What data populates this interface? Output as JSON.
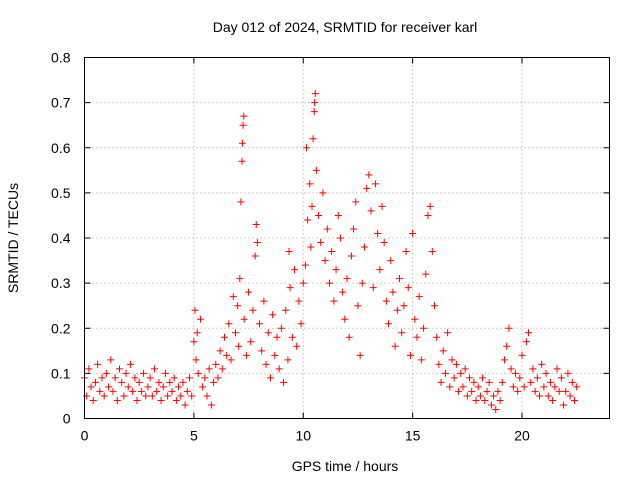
{
  "colors": {
    "series": "#ff0000",
    "axis": "#000000",
    "grid": "#a0a0a0",
    "background": "#ffffff"
  },
  "chart_data": {
    "type": "scatter",
    "title": "Day 012 of 2024, SRMTID for receiver karl",
    "xlabel": "GPS time / hours",
    "ylabel": "SRMTID / TECUs",
    "xlim": [
      0,
      24
    ],
    "ylim": [
      0,
      0.8
    ],
    "xticks": [
      0,
      5,
      10,
      15,
      20
    ],
    "xtick_labels": [
      "0",
      "5",
      "10",
      "15",
      "20"
    ],
    "yticks": [
      0,
      0.1,
      0.2,
      0.3,
      0.4,
      0.5,
      0.6,
      0.7,
      0.8
    ],
    "ytick_labels": [
      "0",
      "0.1",
      "0.2",
      "0.3",
      "0.4",
      "0.5",
      "0.6",
      "0.7",
      "0.8"
    ],
    "grid": true,
    "marker": "+",
    "series": [
      {
        "name": "SRMTID",
        "points": [
          [
            0.0,
            0.09
          ],
          [
            0.1,
            0.05
          ],
          [
            0.2,
            0.11
          ],
          [
            0.3,
            0.07
          ],
          [
            0.4,
            0.04
          ],
          [
            0.5,
            0.08
          ],
          [
            0.6,
            0.12
          ],
          [
            0.7,
            0.06
          ],
          [
            0.8,
            0.09
          ],
          [
            0.9,
            0.05
          ],
          [
            1.0,
            0.1
          ],
          [
            1.1,
            0.07
          ],
          [
            1.2,
            0.13
          ],
          [
            1.3,
            0.06
          ],
          [
            1.4,
            0.09
          ],
          [
            1.5,
            0.04
          ],
          [
            1.6,
            0.11
          ],
          [
            1.7,
            0.08
          ],
          [
            1.8,
            0.05
          ],
          [
            1.9,
            0.1
          ],
          [
            2.0,
            0.07
          ],
          [
            2.1,
            0.12
          ],
          [
            2.2,
            0.06
          ],
          [
            2.3,
            0.09
          ],
          [
            2.4,
            0.04
          ],
          [
            2.5,
            0.08
          ],
          [
            2.6,
            0.06
          ],
          [
            2.7,
            0.1
          ],
          [
            2.8,
            0.05
          ],
          [
            2.9,
            0.07
          ],
          [
            3.0,
            0.09
          ],
          [
            3.1,
            0.05
          ],
          [
            3.2,
            0.11
          ],
          [
            3.3,
            0.06
          ],
          [
            3.4,
            0.08
          ],
          [
            3.5,
            0.04
          ],
          [
            3.6,
            0.07
          ],
          [
            3.7,
            0.1
          ],
          [
            3.8,
            0.05
          ],
          [
            3.9,
            0.08
          ],
          [
            4.0,
            0.06
          ],
          [
            4.1,
            0.09
          ],
          [
            4.2,
            0.04
          ],
          [
            4.3,
            0.07
          ],
          [
            4.4,
            0.05
          ],
          [
            4.5,
            0.08
          ],
          [
            4.6,
            0.03
          ],
          [
            4.7,
            0.06
          ],
          [
            4.8,
            0.09
          ],
          [
            4.9,
            0.05
          ],
          [
            5.0,
            0.17
          ],
          [
            5.05,
            0.24
          ],
          [
            5.1,
            0.13
          ],
          [
            5.15,
            0.19
          ],
          [
            5.2,
            0.1
          ],
          [
            5.3,
            0.22
          ],
          [
            5.4,
            0.07
          ],
          [
            5.5,
            0.09
          ],
          [
            5.6,
            0.05
          ],
          [
            5.7,
            0.11
          ],
          [
            5.8,
            0.03
          ],
          [
            5.9,
            0.08
          ],
          [
            6.0,
            0.12
          ],
          [
            6.1,
            0.09
          ],
          [
            6.2,
            0.15
          ],
          [
            6.3,
            0.11
          ],
          [
            6.4,
            0.18
          ],
          [
            6.5,
            0.14
          ],
          [
            6.6,
            0.21
          ],
          [
            6.7,
            0.13
          ],
          [
            6.8,
            0.27
          ],
          [
            6.9,
            0.19
          ],
          [
            7.0,
            0.25
          ],
          [
            7.05,
            0.16
          ],
          [
            7.1,
            0.31
          ],
          [
            7.15,
            0.48
          ],
          [
            7.2,
            0.57
          ],
          [
            7.22,
            0.61
          ],
          [
            7.25,
            0.65
          ],
          [
            7.28,
            0.67
          ],
          [
            7.3,
            0.22
          ],
          [
            7.4,
            0.14
          ],
          [
            7.5,
            0.28
          ],
          [
            7.6,
            0.17
          ],
          [
            7.7,
            0.24
          ],
          [
            7.8,
            0.36
          ],
          [
            7.85,
            0.43
          ],
          [
            7.9,
            0.39
          ],
          [
            8.0,
            0.21
          ],
          [
            8.1,
            0.15
          ],
          [
            8.2,
            0.26
          ],
          [
            8.3,
            0.12
          ],
          [
            8.4,
            0.19
          ],
          [
            8.5,
            0.09
          ],
          [
            8.6,
            0.23
          ],
          [
            8.7,
            0.14
          ],
          [
            8.8,
            0.18
          ],
          [
            8.9,
            0.11
          ],
          [
            9.0,
            0.2
          ],
          [
            9.1,
            0.08
          ],
          [
            9.2,
            0.24
          ],
          [
            9.3,
            0.13
          ],
          [
            9.35,
            0.37
          ],
          [
            9.4,
            0.29
          ],
          [
            9.5,
            0.18
          ],
          [
            9.6,
            0.33
          ],
          [
            9.7,
            0.16
          ],
          [
            9.8,
            0.26
          ],
          [
            9.9,
            0.21
          ],
          [
            10.0,
            0.3
          ],
          [
            10.1,
            0.34
          ],
          [
            10.15,
            0.6
          ],
          [
            10.2,
            0.44
          ],
          [
            10.3,
            0.52
          ],
          [
            10.35,
            0.38
          ],
          [
            10.4,
            0.47
          ],
          [
            10.45,
            0.62
          ],
          [
            10.5,
            0.68
          ],
          [
            10.52,
            0.7
          ],
          [
            10.55,
            0.72
          ],
          [
            10.6,
            0.55
          ],
          [
            10.7,
            0.45
          ],
          [
            10.8,
            0.39
          ],
          [
            10.9,
            0.5
          ],
          [
            11.0,
            0.35
          ],
          [
            11.1,
            0.42
          ],
          [
            11.2,
            0.3
          ],
          [
            11.3,
            0.37
          ],
          [
            11.4,
            0.26
          ],
          [
            11.5,
            0.33
          ],
          [
            11.6,
            0.45
          ],
          [
            11.7,
            0.4
          ],
          [
            11.8,
            0.28
          ],
          [
            11.9,
            0.22
          ],
          [
            12.0,
            0.31
          ],
          [
            12.1,
            0.18
          ],
          [
            12.2,
            0.36
          ],
          [
            12.3,
            0.42
          ],
          [
            12.4,
            0.48
          ],
          [
            12.5,
            0.25
          ],
          [
            12.6,
            0.14
          ],
          [
            12.7,
            0.3
          ],
          [
            12.8,
            0.38
          ],
          [
            12.9,
            0.51
          ],
          [
            13.0,
            0.54
          ],
          [
            13.1,
            0.46
          ],
          [
            13.2,
            0.29
          ],
          [
            13.3,
            0.52
          ],
          [
            13.4,
            0.41
          ],
          [
            13.5,
            0.33
          ],
          [
            13.6,
            0.47
          ],
          [
            13.7,
            0.39
          ],
          [
            13.8,
            0.26
          ],
          [
            13.9,
            0.21
          ],
          [
            14.0,
            0.35
          ],
          [
            14.1,
            0.28
          ],
          [
            14.2,
            0.16
          ],
          [
            14.3,
            0.24
          ],
          [
            14.4,
            0.31
          ],
          [
            14.5,
            0.19
          ],
          [
            14.6,
            0.25
          ],
          [
            14.7,
            0.37
          ],
          [
            14.8,
            0.29
          ],
          [
            14.9,
            0.14
          ],
          [
            15.0,
            0.41
          ],
          [
            15.1,
            0.22
          ],
          [
            15.2,
            0.18
          ],
          [
            15.3,
            0.27
          ],
          [
            15.4,
            0.13
          ],
          [
            15.5,
            0.2
          ],
          [
            15.6,
            0.32
          ],
          [
            15.7,
            0.45
          ],
          [
            15.8,
            0.47
          ],
          [
            15.9,
            0.37
          ],
          [
            16.0,
            0.25
          ],
          [
            16.1,
            0.18
          ],
          [
            16.2,
            0.12
          ],
          [
            16.3,
            0.08
          ],
          [
            16.4,
            0.15
          ],
          [
            16.5,
            0.1
          ],
          [
            16.6,
            0.19
          ],
          [
            16.7,
            0.07
          ],
          [
            16.8,
            0.13
          ],
          [
            16.9,
            0.09
          ],
          [
            17.0,
            0.12
          ],
          [
            17.1,
            0.06
          ],
          [
            17.2,
            0.1
          ],
          [
            17.3,
            0.07
          ],
          [
            17.4,
            0.11
          ],
          [
            17.5,
            0.05
          ],
          [
            17.6,
            0.09
          ],
          [
            17.7,
            0.06
          ],
          [
            17.8,
            0.08
          ],
          [
            17.9,
            0.04
          ],
          [
            18.0,
            0.07
          ],
          [
            18.1,
            0.05
          ],
          [
            18.2,
            0.09
          ],
          [
            18.3,
            0.04
          ],
          [
            18.4,
            0.06
          ],
          [
            18.5,
            0.08
          ],
          [
            18.6,
            0.03
          ],
          [
            18.7,
            0.05
          ],
          [
            18.8,
            0.02
          ],
          [
            18.9,
            0.06
          ],
          [
            19.0,
            0.04
          ],
          [
            19.1,
            0.08
          ],
          [
            19.2,
            0.13
          ],
          [
            19.3,
            0.16
          ],
          [
            19.4,
            0.2
          ],
          [
            19.5,
            0.11
          ],
          [
            19.6,
            0.07
          ],
          [
            19.7,
            0.1
          ],
          [
            19.8,
            0.06
          ],
          [
            19.9,
            0.09
          ],
          [
            20.0,
            0.14
          ],
          [
            20.1,
            0.07
          ],
          [
            20.2,
            0.17
          ],
          [
            20.3,
            0.19
          ],
          [
            20.4,
            0.08
          ],
          [
            20.5,
            0.11
          ],
          [
            20.6,
            0.06
          ],
          [
            20.7,
            0.09
          ],
          [
            20.8,
            0.05
          ],
          [
            20.9,
            0.12
          ],
          [
            21.0,
            0.07
          ],
          [
            21.1,
            0.1
          ],
          [
            21.2,
            0.05
          ],
          [
            21.3,
            0.08
          ],
          [
            21.4,
            0.04
          ],
          [
            21.5,
            0.07
          ],
          [
            21.6,
            0.11
          ],
          [
            21.7,
            0.06
          ],
          [
            21.8,
            0.09
          ],
          [
            21.9,
            0.03
          ],
          [
            22.0,
            0.06
          ],
          [
            22.1,
            0.1
          ],
          [
            22.2,
            0.05
          ],
          [
            22.3,
            0.08
          ],
          [
            22.4,
            0.04
          ],
          [
            22.5,
            0.07
          ]
        ]
      }
    ]
  }
}
